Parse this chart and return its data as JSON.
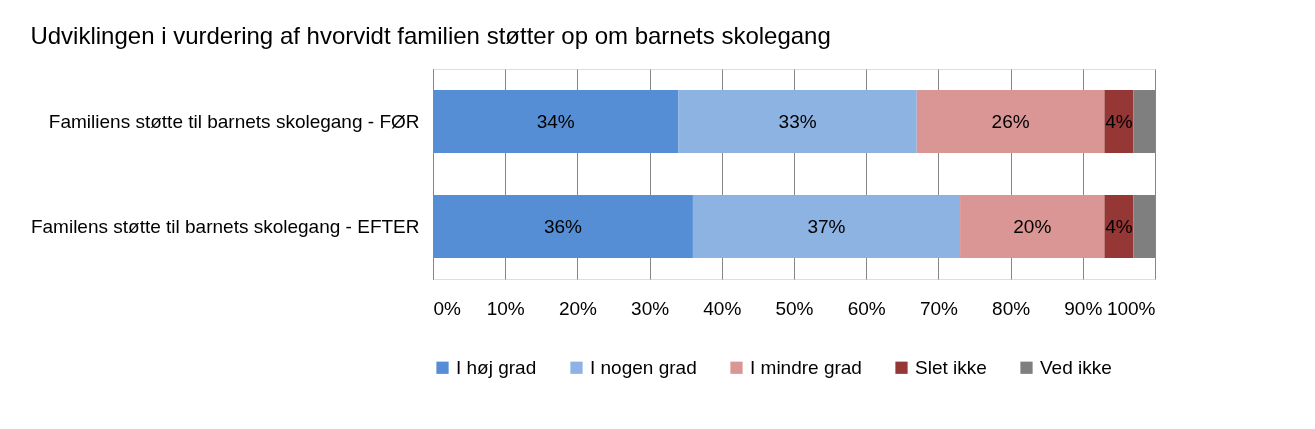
{
  "chart_data": {
    "type": "bar",
    "orientation": "horizontal",
    "stacked": true,
    "title": "Udviklingen i vurdering af hvorvidt familien støtter op om barnets skolegang",
    "categories": [
      "Familiens støtte til barnets skolegang - FØR",
      "Familens støtte til barnets skolegang - EFTER"
    ],
    "series": [
      {
        "name": "I høj grad",
        "color": "#558ed5",
        "values": [
          34,
          36
        ],
        "value_labels": [
          "34%",
          "36%"
        ]
      },
      {
        "name": "I nogen grad",
        "color": "#8db3e2",
        "values": [
          33,
          37
        ],
        "value_labels": [
          "33%",
          "37%"
        ]
      },
      {
        "name": "I mindre grad",
        "color": "#d99694",
        "values": [
          26,
          20
        ],
        "value_labels": [
          "26%",
          "20%"
        ]
      },
      {
        "name": "Slet ikke",
        "color": "#953735",
        "values": [
          4,
          4
        ],
        "value_labels": [
          "4%",
          "4%"
        ]
      },
      {
        "name": "Ved ikke",
        "color": "#7f7f7f",
        "values": [
          3,
          3
        ],
        "value_labels": [
          null,
          null
        ]
      }
    ],
    "xlim": [
      0,
      100
    ],
    "xticks": [
      {
        "value": 0,
        "label": "0%"
      },
      {
        "value": 10,
        "label": "10%"
      },
      {
        "value": 20,
        "label": "20%"
      },
      {
        "value": 30,
        "label": "30%"
      },
      {
        "value": 40,
        "label": "40%"
      },
      {
        "value": 50,
        "label": "50%"
      },
      {
        "value": 60,
        "label": "60%"
      },
      {
        "value": 70,
        "label": "70%"
      },
      {
        "value": 80,
        "label": "80%"
      },
      {
        "value": 90,
        "label": "90%"
      },
      {
        "value": 100,
        "label": "100%"
      }
    ],
    "grid": "x",
    "legend": "bottom"
  }
}
